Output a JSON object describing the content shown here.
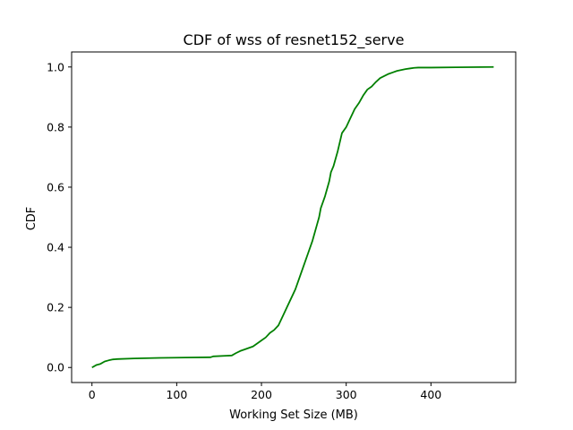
{
  "chart_data": {
    "type": "line",
    "title": "CDF of wss of resnet152_serve",
    "xlabel": "Working Set Size (MB)",
    "ylabel": "CDF",
    "xlim": [
      -24,
      500
    ],
    "ylim": [
      -0.05,
      1.05
    ],
    "xticks": [
      0,
      100,
      200,
      300,
      400
    ],
    "yticks": [
      0.0,
      0.2,
      0.4,
      0.6,
      0.8,
      1.0
    ],
    "xtick_labels": [
      "0",
      "100",
      "200",
      "300",
      "400"
    ],
    "ytick_labels": [
      "0.0",
      "0.2",
      "0.4",
      "0.6",
      "0.8",
      "1.0"
    ],
    "grid": false,
    "series": [
      {
        "color": "#008000",
        "x": [
          0,
          5,
          10,
          15,
          20,
          25,
          30,
          50,
          80,
          110,
          140,
          143,
          165,
          170,
          175,
          180,
          190,
          200,
          205,
          210,
          215,
          220,
          225,
          230,
          235,
          240,
          245,
          250,
          255,
          260,
          265,
          268,
          270,
          275,
          280,
          282,
          285,
          290,
          295,
          300,
          305,
          310,
          315,
          320,
          325,
          330,
          335,
          340,
          345,
          350,
          355,
          360,
          365,
          370,
          375,
          380,
          385,
          390,
          400,
          430,
          474
        ],
        "y": [
          0.0,
          0.008,
          0.012,
          0.02,
          0.024,
          0.027,
          0.028,
          0.03,
          0.032,
          0.033,
          0.034,
          0.037,
          0.04,
          0.048,
          0.055,
          0.06,
          0.07,
          0.09,
          0.1,
          0.115,
          0.125,
          0.14,
          0.17,
          0.2,
          0.23,
          0.26,
          0.3,
          0.34,
          0.38,
          0.42,
          0.47,
          0.5,
          0.53,
          0.57,
          0.62,
          0.65,
          0.67,
          0.72,
          0.78,
          0.8,
          0.83,
          0.86,
          0.88,
          0.905,
          0.925,
          0.935,
          0.95,
          0.963,
          0.97,
          0.977,
          0.982,
          0.987,
          0.99,
          0.993,
          0.995,
          0.997,
          0.998,
          0.998,
          0.998,
          0.999,
          1.0
        ]
      }
    ]
  }
}
